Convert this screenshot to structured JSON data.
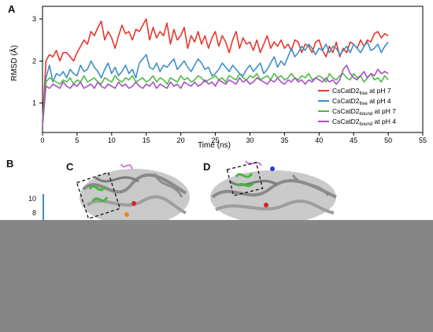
{
  "panels": {
    "a": "A",
    "b": "B",
    "c": "C",
    "d": "D"
  },
  "panel_b": {
    "tick_10": "10",
    "tick_8": "8"
  },
  "colors": {
    "free_ph7": "#e8372b",
    "free_ph4": "#3d8fc7",
    "bound_ph7": "#4cbc45",
    "bound_ph4": "#a550c0",
    "background_band": "#868686"
  },
  "chart_data": {
    "type": "line",
    "xlabel": "Time (ns)",
    "ylabel": "RMSD (Å)",
    "xlim": [
      0,
      55
    ],
    "ylim": [
      0.3,
      3.3
    ],
    "xticks": [
      0,
      5,
      10,
      15,
      20,
      25,
      30,
      35,
      40,
      45,
      50,
      55
    ],
    "yticks": [
      1,
      2,
      3
    ],
    "grid": false,
    "legend_placement": "bottom-right",
    "series": [
      {
        "name": "CsCatD2free at pH 7",
        "legend": {
          "base": "CsCatD2",
          "sub": "free",
          "tail": " at pH 7"
        },
        "color": "#e8372b",
        "x": [
          0,
          0.5,
          1,
          1.5,
          2,
          2.5,
          3,
          3.5,
          4,
          4.5,
          5,
          5.5,
          6,
          6.5,
          7,
          7.5,
          8,
          8.5,
          9,
          9.5,
          10,
          10.5,
          11,
          11.5,
          12,
          12.5,
          13,
          13.5,
          14,
          14.5,
          15,
          15.5,
          16,
          16.5,
          17,
          17.5,
          18,
          18.5,
          19,
          19.5,
          20,
          20.5,
          21,
          21.5,
          22,
          22.5,
          23,
          23.5,
          24,
          24.5,
          25,
          25.5,
          26,
          26.5,
          27,
          27.5,
          28,
          28.5,
          29,
          29.5,
          30,
          30.5,
          31,
          31.5,
          32,
          32.5,
          33,
          33.5,
          34,
          34.5,
          35,
          35.5,
          36,
          36.5,
          37,
          37.5,
          38,
          38.5,
          39,
          39.5,
          40,
          40.5,
          41,
          41.5,
          42,
          42.5,
          43,
          43.5,
          44,
          44.5,
          45,
          45.5,
          46,
          46.5,
          47,
          47.5,
          48,
          48.5,
          49,
          49.5,
          50
        ],
        "y": [
          0.55,
          2.0,
          2.15,
          2.1,
          2.25,
          2.0,
          2.2,
          2.2,
          2.1,
          2.0,
          2.2,
          2.35,
          2.5,
          2.4,
          2.7,
          2.6,
          2.8,
          2.95,
          2.5,
          2.7,
          2.55,
          2.3,
          2.6,
          2.85,
          2.65,
          2.7,
          2.5,
          2.75,
          2.7,
          2.85,
          3.0,
          2.5,
          2.8,
          2.55,
          2.7,
          2.6,
          2.9,
          2.4,
          2.75,
          2.5,
          2.6,
          2.8,
          2.3,
          2.6,
          2.45,
          2.7,
          2.4,
          2.6,
          2.3,
          2.55,
          2.7,
          2.35,
          2.6,
          2.45,
          2.2,
          2.5,
          2.7,
          2.3,
          2.55,
          2.4,
          2.45,
          2.25,
          2.5,
          2.2,
          2.4,
          2.6,
          2.3,
          2.45,
          2.35,
          2.5,
          2.3,
          2.4,
          2.25,
          2.5,
          2.45,
          2.2,
          2.4,
          2.35,
          2.2,
          2.45,
          2.5,
          2.25,
          2.1,
          2.35,
          2.2,
          2.45,
          2.1,
          2.3,
          2.2,
          2.45,
          2.4,
          2.3,
          2.5,
          2.35,
          2.5,
          2.45,
          2.65,
          2.7,
          2.55,
          2.65,
          2.6
        ]
      },
      {
        "name": "CsCatD2free at pH 4",
        "legend": {
          "base": "CsCatD2",
          "sub": "free",
          "tail": " at pH 4"
        },
        "color": "#3d8fc7",
        "x": [
          0,
          0.5,
          1,
          1.5,
          2,
          2.5,
          3,
          3.5,
          4,
          4.5,
          5,
          5.5,
          6,
          6.5,
          7,
          7.5,
          8,
          8.5,
          9,
          9.5,
          10,
          10.5,
          11,
          11.5,
          12,
          12.5,
          13,
          13.5,
          14,
          14.5,
          15,
          15.5,
          16,
          16.5,
          17,
          17.5,
          18,
          18.5,
          19,
          19.5,
          20,
          20.5,
          21,
          21.5,
          22,
          22.5,
          23,
          23.5,
          24,
          24.5,
          25,
          25.5,
          26,
          26.5,
          27,
          27.5,
          28,
          28.5,
          29,
          29.5,
          30,
          30.5,
          31,
          31.5,
          32,
          32.5,
          33,
          33.5,
          34,
          34.5,
          35,
          35.5,
          36,
          36.5,
          37,
          37.5,
          38,
          38.5,
          39,
          39.5,
          40,
          40.5,
          41,
          41.5,
          42,
          42.5,
          43,
          43.5,
          44,
          44.5,
          45,
          45.5,
          46,
          46.5,
          47,
          47.5,
          48,
          48.5,
          49,
          49.5,
          50
        ],
        "y": [
          0.5,
          1.6,
          1.9,
          1.5,
          1.7,
          1.65,
          1.75,
          1.6,
          1.8,
          1.7,
          1.65,
          1.9,
          1.75,
          1.8,
          2.0,
          1.85,
          1.75,
          1.6,
          1.8,
          1.95,
          1.7,
          1.85,
          1.65,
          1.75,
          1.9,
          1.7,
          1.8,
          1.6,
          1.95,
          2.05,
          2.15,
          1.85,
          1.8,
          1.95,
          1.75,
          1.9,
          1.85,
          1.95,
          2.05,
          1.8,
          1.9,
          2.0,
          1.85,
          1.75,
          1.9,
          2.05,
          1.95,
          1.8,
          1.85,
          1.65,
          1.7,
          1.8,
          1.95,
          1.85,
          1.75,
          1.9,
          1.8,
          1.7,
          1.65,
          1.8,
          1.9,
          1.75,
          1.85,
          1.95,
          1.7,
          1.8,
          1.95,
          2.1,
          1.85,
          2.0,
          1.9,
          2.1,
          2.3,
          2.1,
          2.2,
          2.35,
          2.25,
          2.4,
          2.3,
          2.15,
          2.3,
          2.25,
          2.4,
          2.2,
          2.35,
          2.3,
          2.15,
          2.25,
          2.35,
          2.2,
          2.4,
          2.3,
          2.2,
          2.35,
          2.45,
          2.25,
          2.3,
          2.4,
          2.2,
          2.35,
          2.45
        ]
      },
      {
        "name": "CsCatD2bound at pH 7",
        "legend": {
          "base": "CsCatD2",
          "sub": "bound",
          "tail": " at pH 7"
        },
        "color": "#4cbc45",
        "x": [
          0,
          0.5,
          1,
          1.5,
          2,
          2.5,
          3,
          3.5,
          4,
          4.5,
          5,
          5.5,
          6,
          6.5,
          7,
          7.5,
          8,
          8.5,
          9,
          9.5,
          10,
          10.5,
          11,
          11.5,
          12,
          12.5,
          13,
          13.5,
          14,
          14.5,
          15,
          15.5,
          16,
          16.5,
          17,
          17.5,
          18,
          18.5,
          19,
          19.5,
          20,
          20.5,
          21,
          21.5,
          22,
          22.5,
          23,
          23.5,
          24,
          24.5,
          25,
          25.5,
          26,
          26.5,
          27,
          27.5,
          28,
          28.5,
          29,
          29.5,
          30,
          30.5,
          31,
          31.5,
          32,
          32.5,
          33,
          33.5,
          34,
          34.5,
          35,
          35.5,
          36,
          36.5,
          37,
          37.5,
          38,
          38.5,
          39,
          39.5,
          40,
          40.5,
          41,
          41.5,
          42,
          42.5,
          43,
          43.5,
          44,
          44.5,
          45,
          45.5,
          46,
          46.5,
          47,
          47.5,
          48,
          48.5,
          49,
          49.5,
          50
        ],
        "y": [
          0.6,
          1.5,
          1.6,
          1.55,
          1.5,
          1.45,
          1.55,
          1.5,
          1.6,
          1.45,
          1.55,
          1.5,
          1.65,
          1.5,
          1.55,
          1.6,
          1.5,
          1.45,
          1.6,
          1.55,
          1.5,
          1.65,
          1.55,
          1.5,
          1.6,
          1.55,
          1.65,
          1.5,
          1.55,
          1.6,
          1.5,
          1.55,
          1.65,
          1.5,
          1.6,
          1.55,
          1.45,
          1.6,
          1.55,
          1.5,
          1.65,
          1.55,
          1.6,
          1.5,
          1.55,
          1.65,
          1.6,
          1.5,
          1.55,
          1.6,
          1.65,
          1.55,
          1.6,
          1.5,
          1.65,
          1.6,
          1.55,
          1.7,
          1.6,
          1.55,
          1.65,
          1.6,
          1.7,
          1.55,
          1.6,
          1.65,
          1.55,
          1.7,
          1.6,
          1.65,
          1.55,
          1.6,
          1.7,
          1.6,
          1.55,
          1.65,
          1.6,
          1.7,
          1.55,
          1.6,
          1.65,
          1.6,
          1.5,
          1.7,
          1.6,
          1.55,
          1.65,
          1.7,
          1.6,
          1.55,
          1.7,
          1.6,
          1.65,
          1.5,
          1.6,
          1.7,
          1.55,
          1.6,
          1.5,
          1.65,
          1.55
        ]
      },
      {
        "name": "CsCatD2bound at pH 4",
        "legend": {
          "base": "CsCatD2",
          "sub": "bound",
          "tail": " at pH 4"
        },
        "color": "#a550c0",
        "x": [
          0,
          0.5,
          1,
          1.5,
          2,
          2.5,
          3,
          3.5,
          4,
          4.5,
          5,
          5.5,
          6,
          6.5,
          7,
          7.5,
          8,
          8.5,
          9,
          9.5,
          10,
          10.5,
          11,
          11.5,
          12,
          12.5,
          13,
          13.5,
          14,
          14.5,
          15,
          15.5,
          16,
          16.5,
          17,
          17.5,
          18,
          18.5,
          19,
          19.5,
          20,
          20.5,
          21,
          21.5,
          22,
          22.5,
          23,
          23.5,
          24,
          24.5,
          25,
          25.5,
          26,
          26.5,
          27,
          27.5,
          28,
          28.5,
          29,
          29.5,
          30,
          30.5,
          31,
          31.5,
          32,
          32.5,
          33,
          33.5,
          34,
          34.5,
          35,
          35.5,
          36,
          36.5,
          37,
          37.5,
          38,
          38.5,
          39,
          39.5,
          40,
          40.5,
          41,
          41.5,
          42,
          42.5,
          43,
          43.5,
          44,
          44.5,
          45,
          45.5,
          46,
          46.5,
          47,
          47.5,
          48,
          48.5,
          49,
          49.5,
          50
        ],
        "y": [
          0.45,
          1.4,
          1.35,
          1.45,
          1.4,
          1.35,
          1.5,
          1.4,
          1.35,
          1.45,
          1.4,
          1.5,
          1.35,
          1.4,
          1.45,
          1.35,
          1.5,
          1.4,
          1.35,
          1.45,
          1.4,
          1.35,
          1.5,
          1.4,
          1.45,
          1.35,
          1.4,
          1.5,
          1.4,
          1.35,
          1.45,
          1.4,
          1.5,
          1.35,
          1.45,
          1.4,
          1.35,
          1.5,
          1.4,
          1.45,
          1.35,
          1.5,
          1.45,
          1.4,
          1.5,
          1.4,
          1.45,
          1.55,
          1.45,
          1.5,
          1.4,
          1.55,
          1.5,
          1.45,
          1.55,
          1.5,
          1.45,
          1.6,
          1.5,
          1.55,
          1.45,
          1.5,
          1.6,
          1.55,
          1.5,
          1.45,
          1.55,
          1.5,
          1.6,
          1.5,
          1.45,
          1.55,
          1.5,
          1.6,
          1.5,
          1.55,
          1.45,
          1.55,
          1.5,
          1.6,
          1.55,
          1.5,
          1.6,
          1.5,
          1.55,
          1.45,
          1.55,
          1.8,
          1.9,
          1.7,
          1.6,
          1.55,
          1.65,
          1.75,
          1.6,
          1.7,
          1.65,
          1.8,
          1.7,
          1.75,
          1.7
        ]
      }
    ]
  }
}
